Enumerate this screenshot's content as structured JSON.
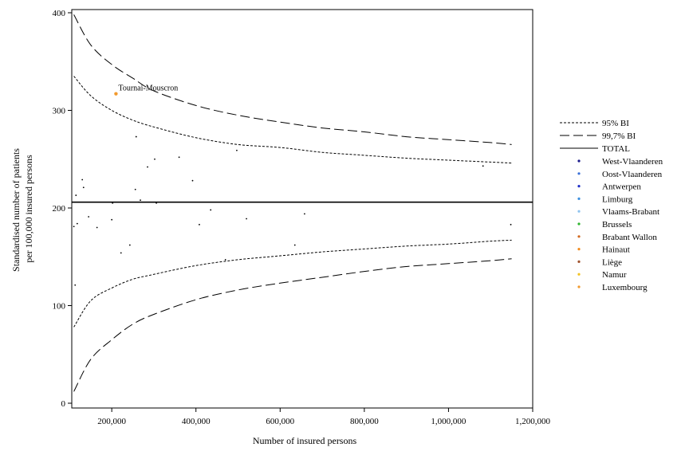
{
  "chart_data": {
    "type": "scatter",
    "title": "",
    "xlabel": "Number of insured persons",
    "ylabel_lines": [
      "Standardised number of patients",
      "per 100,000 insured persons"
    ],
    "xlim": [
      105000,
      1200000
    ],
    "ylim": [
      0,
      400
    ],
    "x_ticks": [
      200000,
      400000,
      600000,
      800000,
      1000000,
      1200000
    ],
    "x_tick_labels": [
      "200,000",
      "400,000",
      "600,000",
      "800,000",
      "1,000,000",
      "1,200,000"
    ],
    "y_ticks": [
      0,
      100,
      200,
      300,
      400
    ],
    "y_tick_labels": [
      "0",
      "100",
      "200",
      "300",
      "400"
    ],
    "grid": false,
    "legend_position": "right",
    "total": 206,
    "funnel": {
      "x": [
        110000,
        150000,
        200000,
        250000,
        300000,
        400000,
        500000,
        600000,
        700000,
        800000,
        900000,
        1000000,
        1100000,
        1150000
      ],
      "ci95_upper": [
        335,
        315,
        300,
        290,
        283,
        272,
        265,
        262,
        257,
        254,
        251,
        249,
        247,
        246
      ],
      "ci95_lower": [
        78,
        105,
        118,
        127,
        132,
        141,
        147,
        151,
        155,
        158,
        161,
        163,
        166,
        167
      ],
      "ci997_upper": [
        398,
        367,
        347,
        333,
        320,
        305,
        295,
        288,
        282,
        278,
        273,
        270,
        267,
        265
      ],
      "ci997_lower": [
        12,
        45,
        65,
        81,
        91,
        106,
        116,
        123,
        129,
        135,
        140,
        143,
        146,
        148
      ]
    },
    "series_lines": [
      {
        "name": "95% BI",
        "dash": "3,2",
        "color": "#000000"
      },
      {
        "name": "99,7% BI",
        "dash": "12,5",
        "color": "#000000"
      },
      {
        "name": "TOTAL",
        "dash": "",
        "color": "#000000"
      }
    ],
    "provinces": [
      {
        "name": "West-Vlaanderen",
        "color": "#1a1a8c"
      },
      {
        "name": "Oost-Vlaanderen",
        "color": "#3a6fd8"
      },
      {
        "name": "Antwerpen",
        "color": "#1f2fc8"
      },
      {
        "name": "Limburg",
        "color": "#3b8fe0"
      },
      {
        "name": "Vlaams-Brabant",
        "color": "#8ec3ef"
      },
      {
        "name": "Brussels",
        "color": "#2fb52f"
      },
      {
        "name": "Brabant Wallon",
        "color": "#d2691e"
      },
      {
        "name": "Hainaut",
        "color": "#f28c1f"
      },
      {
        "name": "Liège",
        "color": "#a0522d"
      },
      {
        "name": "Namur",
        "color": "#f2c21f"
      },
      {
        "name": "Luxembourg",
        "color": "#f29a2e"
      }
    ],
    "points": [
      {
        "x": 110000,
        "y": 181,
        "color": "#000000"
      },
      {
        "x": 113000,
        "y": 121,
        "color": "#000000"
      },
      {
        "x": 115000,
        "y": 213,
        "color": "#000000"
      },
      {
        "x": 118000,
        "y": 184,
        "color": "#000000"
      },
      {
        "x": 130000,
        "y": 229,
        "color": "#000000"
      },
      {
        "x": 133000,
        "y": 221,
        "color": "#000000"
      },
      {
        "x": 145000,
        "y": 191,
        "color": "#000000"
      },
      {
        "x": 165000,
        "y": 180,
        "color": "#000000"
      },
      {
        "x": 200000,
        "y": 188,
        "color": "#000000"
      },
      {
        "x": 202000,
        "y": 205,
        "color": "#000000"
      },
      {
        "x": 222000,
        "y": 154,
        "color": "#000000"
      },
      {
        "x": 243000,
        "y": 162,
        "color": "#000000"
      },
      {
        "x": 256000,
        "y": 219,
        "color": "#000000"
      },
      {
        "x": 258000,
        "y": 273,
        "color": "#000000"
      },
      {
        "x": 268000,
        "y": 208,
        "color": "#000000"
      },
      {
        "x": 285000,
        "y": 242,
        "color": "#000000"
      },
      {
        "x": 302000,
        "y": 250,
        "color": "#000000"
      },
      {
        "x": 306000,
        "y": 205,
        "color": "#000000"
      },
      {
        "x": 360000,
        "y": 252,
        "color": "#000000"
      },
      {
        "x": 392000,
        "y": 228,
        "color": "#000000"
      },
      {
        "x": 408000,
        "y": 183,
        "color": "#000000"
      },
      {
        "x": 435000,
        "y": 198,
        "color": "#000000"
      },
      {
        "x": 470000,
        "y": 147,
        "color": "#000000"
      },
      {
        "x": 497000,
        "y": 259,
        "color": "#000000"
      },
      {
        "x": 520000,
        "y": 189,
        "color": "#000000"
      },
      {
        "x": 635000,
        "y": 162,
        "color": "#000000"
      },
      {
        "x": 658000,
        "y": 194,
        "color": "#000000"
      },
      {
        "x": 1082000,
        "y": 243,
        "color": "#000000"
      },
      {
        "x": 1148000,
        "y": 183,
        "color": "#000000"
      },
      {
        "x": 210000,
        "y": 317,
        "color": "#f29a2e",
        "label": "Tournai-Mouscron"
      }
    ]
  }
}
